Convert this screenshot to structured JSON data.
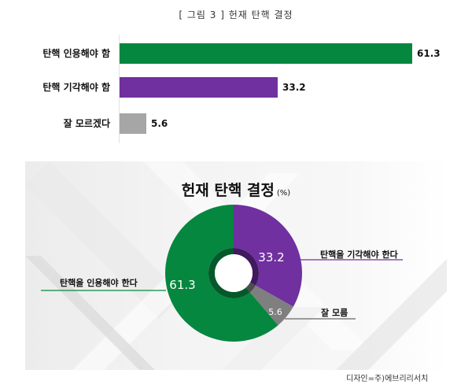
{
  "figure_caption": "[ 그림 3 ] 헌재 탄핵 결정",
  "bar_chart": {
    "items": [
      {
        "label": "탄핵 인용해야 함",
        "value": 61.3,
        "value_text": "61.3",
        "color": "#05873f"
      },
      {
        "label": "탄핵 기각해야 함",
        "value": 33.2,
        "value_text": "33.2",
        "color": "#7030a0"
      },
      {
        "label": "잘 모르겠다",
        "value": 5.6,
        "value_text": "5.6",
        "color": "#a6a6a6"
      }
    ]
  },
  "donut_panel": {
    "title": "헌재 탄핵 결정",
    "unit": "(%)",
    "slices": [
      {
        "label": "탄핵을 인용해야 한다",
        "value": 61.3,
        "value_text": "61.3",
        "color": "#05873f",
        "inner_color": "#04582a"
      },
      {
        "label": "탄핵을 기각해야 한다",
        "value": 33.2,
        "value_text": "33.2",
        "color": "#7030a0",
        "inner_color": "#3f1a5e"
      },
      {
        "label": "잘 모름",
        "value": 5.6,
        "value_text": "5.6",
        "color": "#7f7f7f",
        "inner_color": "#4d4d4d"
      }
    ]
  },
  "credit": "디자인=주)에브리리서치",
  "chart_data": [
    {
      "type": "bar",
      "orientation": "horizontal",
      "title": "[ 그림 3 ] 헌재 탄핵 결정",
      "categories": [
        "탄핵 인용해야 함",
        "탄핵 기각해야 함",
        "잘 모르겠다"
      ],
      "values": [
        61.3,
        33.2,
        5.6
      ],
      "colors": [
        "#05873f",
        "#7030a0",
        "#a6a6a6"
      ],
      "xlabel": "",
      "ylabel": "",
      "grid": false,
      "legend": "none"
    },
    {
      "type": "pie",
      "style": "donut",
      "title": "헌재 탄핵 결정 (%)",
      "categories": [
        "탄핵을 인용해야 한다",
        "탄핵을 기각해야 한다",
        "잘 모름"
      ],
      "values": [
        61.3,
        33.2,
        5.6
      ],
      "colors": [
        "#05873f",
        "#7030a0",
        "#7f7f7f"
      ],
      "legend": "callout labels"
    }
  ]
}
